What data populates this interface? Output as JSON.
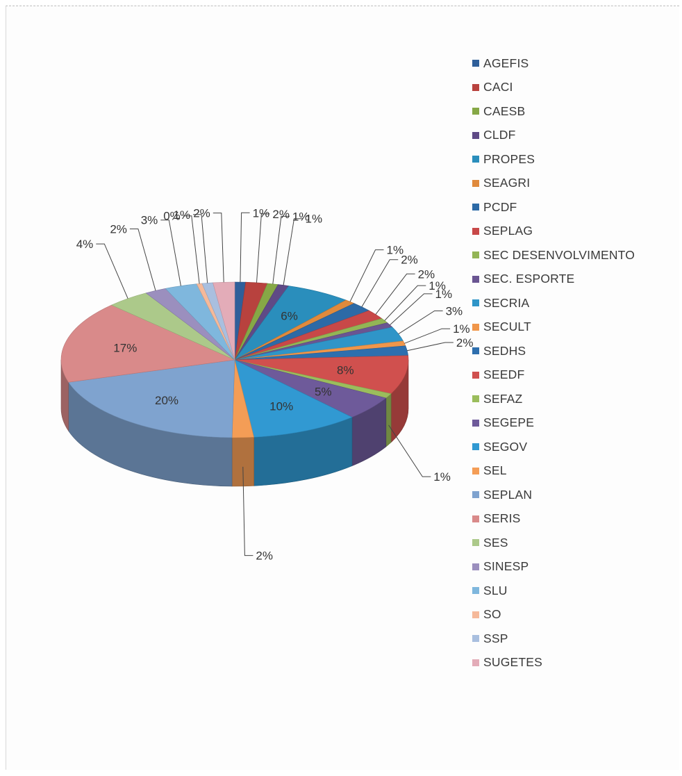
{
  "chart_data": {
    "type": "pie",
    "style": "3d-exploded-off",
    "legend_position": "right",
    "slices": [
      {
        "name": "AGEFIS",
        "value": 1,
        "label": "1%",
        "color": "#2f5f9a"
      },
      {
        "name": "CACI",
        "value": 2,
        "label": "2%",
        "color": "#b8423e"
      },
      {
        "name": "CAESB",
        "value": 1,
        "label": "1%",
        "color": "#86a846"
      },
      {
        "name": "CLDF",
        "value": 1,
        "label": "1%",
        "color": "#5f4a86"
      },
      {
        "name": "PROPES",
        "value": 6,
        "label": "6%",
        "color": "#2a8ebc"
      },
      {
        "name": "SEAGRI",
        "value": 1,
        "label": "1%",
        "color": "#e08a3c"
      },
      {
        "name": "PCDF",
        "value": 2,
        "label": "2%",
        "color": "#2d6aa6"
      },
      {
        "name": "SEPLAG",
        "value": 2,
        "label": "2%",
        "color": "#c84848"
      },
      {
        "name": "SEC DESENVOLVIMENTO",
        "value": 1,
        "label": "1%",
        "color": "#93b555"
      },
      {
        "name": "SEC. ESPORTE",
        "value": 1,
        "label": "1%",
        "color": "#6a5592"
      },
      {
        "name": "SECRIA",
        "value": 3,
        "label": "3%",
        "color": "#2f95c8"
      },
      {
        "name": "SECULT",
        "value": 1,
        "label": "1%",
        "color": "#f0964a"
      },
      {
        "name": "SEDHS",
        "value": 2,
        "label": "2%",
        "color": "#2e6fae"
      },
      {
        "name": "SEEDF",
        "value": 8,
        "label": "8%",
        "color": "#d0504e"
      },
      {
        "name": "SEFAZ",
        "value": 1,
        "label": "1%",
        "color": "#9bbd5c"
      },
      {
        "name": "SEGEPE",
        "value": 5,
        "label": "5%",
        "color": "#6e5a9a"
      },
      {
        "name": "SEGOV",
        "value": 10,
        "label": "10%",
        "color": "#3199d2"
      },
      {
        "name": "SEL",
        "value": 2,
        "label": "2%",
        "color": "#f49d56"
      },
      {
        "name": "SEPLAN",
        "value": 20,
        "label": "20%",
        "color": "#7fa3cf"
      },
      {
        "name": "SERIS",
        "value": 17,
        "label": "17%",
        "color": "#d98a8a"
      },
      {
        "name": "SES",
        "value": 4,
        "label": "4%",
        "color": "#acc98a"
      },
      {
        "name": "SINESP",
        "value": 2,
        "label": "2%",
        "color": "#9b8fbe"
      },
      {
        "name": "SLU",
        "value": 3,
        "label": "3%",
        "color": "#7fb7dd"
      },
      {
        "name": "SO",
        "value": 0.5,
        "label": "0%",
        "color": "#f5b99a"
      },
      {
        "name": "SSP",
        "value": 1,
        "label": "1%",
        "color": "#a9bfdf"
      },
      {
        "name": "SUGETES",
        "value": 2,
        "label": "2%",
        "color": "#e3acb8"
      }
    ]
  }
}
